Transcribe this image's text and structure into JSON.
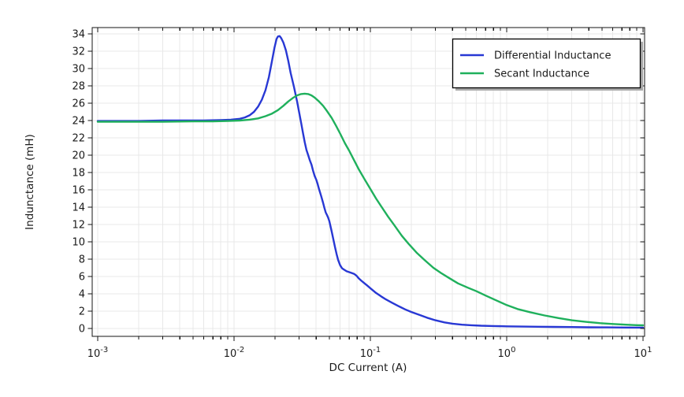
{
  "chart_data": {
    "type": "line",
    "title": "",
    "xlabel": "DC Current (A)",
    "ylabel": "Indunctance (mH)",
    "xscale": "log",
    "yscale": "linear",
    "xlim": [
      0.001,
      10
    ],
    "ylim": [
      0,
      34
    ],
    "grid": true,
    "legend_position": "top-right",
    "x_tick_base": "10",
    "x_tick_exponents": [
      -3,
      -2,
      -1,
      0,
      1
    ],
    "y_ticks": [
      0,
      2,
      4,
      6,
      8,
      10,
      12,
      14,
      16,
      18,
      20,
      22,
      24,
      26,
      28,
      30,
      32,
      34
    ],
    "colors": {
      "background": "#ffffff",
      "grid": "#e8e8e8",
      "frame": "#141414",
      "text": "#1a1a1a",
      "legend_border": "#000000",
      "legend_background": "#ffffff",
      "legend_shadow": "#a9a9a9"
    },
    "series": [
      {
        "name": "Differential Inductance",
        "color": "#2838d4",
        "points": [
          [
            0.001,
            23.95
          ],
          [
            0.0015,
            23.95
          ],
          [
            0.002,
            23.95
          ],
          [
            0.003,
            24.0
          ],
          [
            0.0045,
            24.0
          ],
          [
            0.006,
            24.0
          ],
          [
            0.008,
            24.05
          ],
          [
            0.0095,
            24.1
          ],
          [
            0.011,
            24.2
          ],
          [
            0.012,
            24.35
          ],
          [
            0.013,
            24.6
          ],
          [
            0.014,
            25.0
          ],
          [
            0.015,
            25.6
          ],
          [
            0.016,
            26.4
          ],
          [
            0.017,
            27.5
          ],
          [
            0.018,
            29.0
          ],
          [
            0.019,
            30.9
          ],
          [
            0.0198,
            32.4
          ],
          [
            0.0205,
            33.4
          ],
          [
            0.021,
            33.7
          ],
          [
            0.0216,
            33.75
          ],
          [
            0.0222,
            33.5
          ],
          [
            0.023,
            33.0
          ],
          [
            0.024,
            32.1
          ],
          [
            0.025,
            30.9
          ],
          [
            0.026,
            29.5
          ],
          [
            0.0275,
            27.9
          ],
          [
            0.029,
            26.2
          ],
          [
            0.03,
            25.0
          ],
          [
            0.031,
            23.8
          ],
          [
            0.032,
            22.6
          ],
          [
            0.033,
            21.5
          ],
          [
            0.034,
            20.6
          ],
          [
            0.035,
            20.0
          ],
          [
            0.036,
            19.4
          ],
          [
            0.037,
            18.9
          ],
          [
            0.038,
            18.2
          ],
          [
            0.039,
            17.6
          ],
          [
            0.04,
            17.2
          ],
          [
            0.041,
            16.7
          ],
          [
            0.042,
            16.1
          ],
          [
            0.0435,
            15.3
          ],
          [
            0.045,
            14.5
          ],
          [
            0.046,
            13.9
          ],
          [
            0.047,
            13.4
          ],
          [
            0.048,
            13.1
          ],
          [
            0.049,
            12.8
          ],
          [
            0.05,
            12.4
          ],
          [
            0.051,
            11.8
          ],
          [
            0.052,
            11.2
          ],
          [
            0.0535,
            10.3
          ],
          [
            0.055,
            9.4
          ],
          [
            0.0565,
            8.6
          ],
          [
            0.058,
            7.9
          ],
          [
            0.06,
            7.3
          ],
          [
            0.062,
            6.95
          ],
          [
            0.064,
            6.8
          ],
          [
            0.067,
            6.6
          ],
          [
            0.07,
            6.5
          ],
          [
            0.073,
            6.4
          ],
          [
            0.076,
            6.3
          ],
          [
            0.079,
            6.1
          ],
          [
            0.082,
            5.8
          ],
          [
            0.086,
            5.5
          ],
          [
            0.09,
            5.25
          ],
          [
            0.095,
            4.95
          ],
          [
            0.1,
            4.65
          ],
          [
            0.11,
            4.1
          ],
          [
            0.12,
            3.7
          ],
          [
            0.13,
            3.35
          ],
          [
            0.145,
            2.95
          ],
          [
            0.16,
            2.6
          ],
          [
            0.18,
            2.2
          ],
          [
            0.2,
            1.9
          ],
          [
            0.23,
            1.55
          ],
          [
            0.26,
            1.25
          ],
          [
            0.3,
            0.95
          ],
          [
            0.35,
            0.7
          ],
          [
            0.4,
            0.55
          ],
          [
            0.47,
            0.44
          ],
          [
            0.55,
            0.37
          ],
          [
            0.65,
            0.32
          ],
          [
            0.8,
            0.28
          ],
          [
            1.0,
            0.25
          ],
          [
            1.3,
            0.22
          ],
          [
            1.7,
            0.2
          ],
          [
            2.2,
            0.18
          ],
          [
            3.0,
            0.16
          ],
          [
            4.0,
            0.14
          ],
          [
            5.5,
            0.13
          ],
          [
            7.5,
            0.11
          ],
          [
            10,
            0.1
          ]
        ]
      },
      {
        "name": "Secant Inductance",
        "color": "#1fb05c",
        "points": [
          [
            0.001,
            23.85
          ],
          [
            0.0015,
            23.85
          ],
          [
            0.002,
            23.85
          ],
          [
            0.003,
            23.85
          ],
          [
            0.005,
            23.9
          ],
          [
            0.007,
            23.9
          ],
          [
            0.009,
            23.95
          ],
          [
            0.011,
            24.0
          ],
          [
            0.013,
            24.1
          ],
          [
            0.015,
            24.25
          ],
          [
            0.017,
            24.5
          ],
          [
            0.019,
            24.8
          ],
          [
            0.021,
            25.2
          ],
          [
            0.023,
            25.7
          ],
          [
            0.025,
            26.2
          ],
          [
            0.027,
            26.6
          ],
          [
            0.029,
            26.9
          ],
          [
            0.031,
            27.05
          ],
          [
            0.033,
            27.1
          ],
          [
            0.035,
            27.05
          ],
          [
            0.037,
            26.9
          ],
          [
            0.039,
            26.65
          ],
          [
            0.042,
            26.2
          ],
          [
            0.045,
            25.7
          ],
          [
            0.048,
            25.1
          ],
          [
            0.052,
            24.3
          ],
          [
            0.056,
            23.4
          ],
          [
            0.06,
            22.5
          ],
          [
            0.065,
            21.4
          ],
          [
            0.07,
            20.5
          ],
          [
            0.076,
            19.4
          ],
          [
            0.082,
            18.4
          ],
          [
            0.09,
            17.3
          ],
          [
            0.1,
            16.1
          ],
          [
            0.11,
            15.0
          ],
          [
            0.12,
            14.1
          ],
          [
            0.135,
            12.9
          ],
          [
            0.15,
            11.9
          ],
          [
            0.17,
            10.7
          ],
          [
            0.19,
            9.8
          ],
          [
            0.22,
            8.7
          ],
          [
            0.25,
            7.9
          ],
          [
            0.29,
            7.0
          ],
          [
            0.33,
            6.4
          ],
          [
            0.38,
            5.8
          ],
          [
            0.44,
            5.2
          ],
          [
            0.52,
            4.7
          ],
          [
            0.6,
            4.3
          ],
          [
            0.7,
            3.8
          ],
          [
            0.85,
            3.2
          ],
          [
            1.0,
            2.7
          ],
          [
            1.2,
            2.25
          ],
          [
            1.5,
            1.85
          ],
          [
            1.9,
            1.5
          ],
          [
            2.4,
            1.2
          ],
          [
            3.0,
            0.95
          ],
          [
            3.8,
            0.76
          ],
          [
            4.8,
            0.62
          ],
          [
            6.0,
            0.52
          ],
          [
            7.5,
            0.44
          ],
          [
            9.0,
            0.38
          ],
          [
            10,
            0.36
          ]
        ]
      }
    ]
  }
}
